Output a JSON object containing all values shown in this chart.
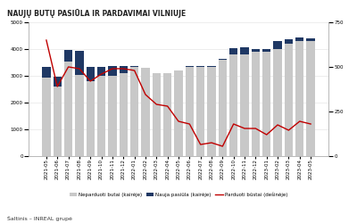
{
  "title": "NAUJŲ BUTŲ PASIŪLA IR PARDAVIMAI VILNIUJE",
  "source": "Šaltinis – INREAL grupė",
  "categories": [
    "2021-05",
    "2021-06",
    "2021-07",
    "2021-08",
    "2021-09",
    "2021-10",
    "2021-11",
    "2021-12",
    "2022-01",
    "2022-02",
    "2022-03",
    "2022-04",
    "2022-05",
    "2022-06",
    "2022-07",
    "2022-08",
    "2022-09",
    "2022-10",
    "2022-11",
    "2022-12",
    "2023-01",
    "2023-02",
    "2023-03",
    "2023-04",
    "2023-05"
  ],
  "unsold": [
    2950,
    2600,
    3550,
    3050,
    2800,
    3000,
    3000,
    3100,
    3350,
    3300,
    3100,
    3100,
    3200,
    3350,
    3350,
    3350,
    3600,
    3800,
    3800,
    3900,
    3900,
    4000,
    4200,
    4300,
    4300
  ],
  "new_supply": [
    380,
    380,
    420,
    900,
    550,
    350,
    370,
    260,
    10,
    10,
    10,
    10,
    10,
    10,
    10,
    10,
    50,
    250,
    280,
    100,
    100,
    300,
    180,
    130,
    110
  ],
  "sold": [
    650,
    390,
    500,
    490,
    420,
    460,
    490,
    490,
    480,
    345,
    290,
    280,
    195,
    180,
    65,
    75,
    55,
    180,
    155,
    155,
    120,
    175,
    145,
    195,
    180
  ],
  "unsold_color": "#c8c8c8",
  "new_supply_color": "#1f3864",
  "sold_color": "#c00000",
  "left_ylim": [
    0,
    5000
  ],
  "right_ylim": [
    0,
    750
  ],
  "left_yticks": [
    0,
    1000,
    2000,
    3000,
    4000,
    5000
  ],
  "right_yticks": [
    0,
    250,
    500,
    750
  ],
  "legend_labels": [
    "Neparduoti butai (kairėje)",
    "Nauja pasiūla (kairėje)",
    "Parduoti būstai (dešinėje)"
  ],
  "title_fontsize": 5.5,
  "tick_fontsize": 4.0,
  "legend_fontsize": 4.0,
  "source_fontsize": 4.5
}
